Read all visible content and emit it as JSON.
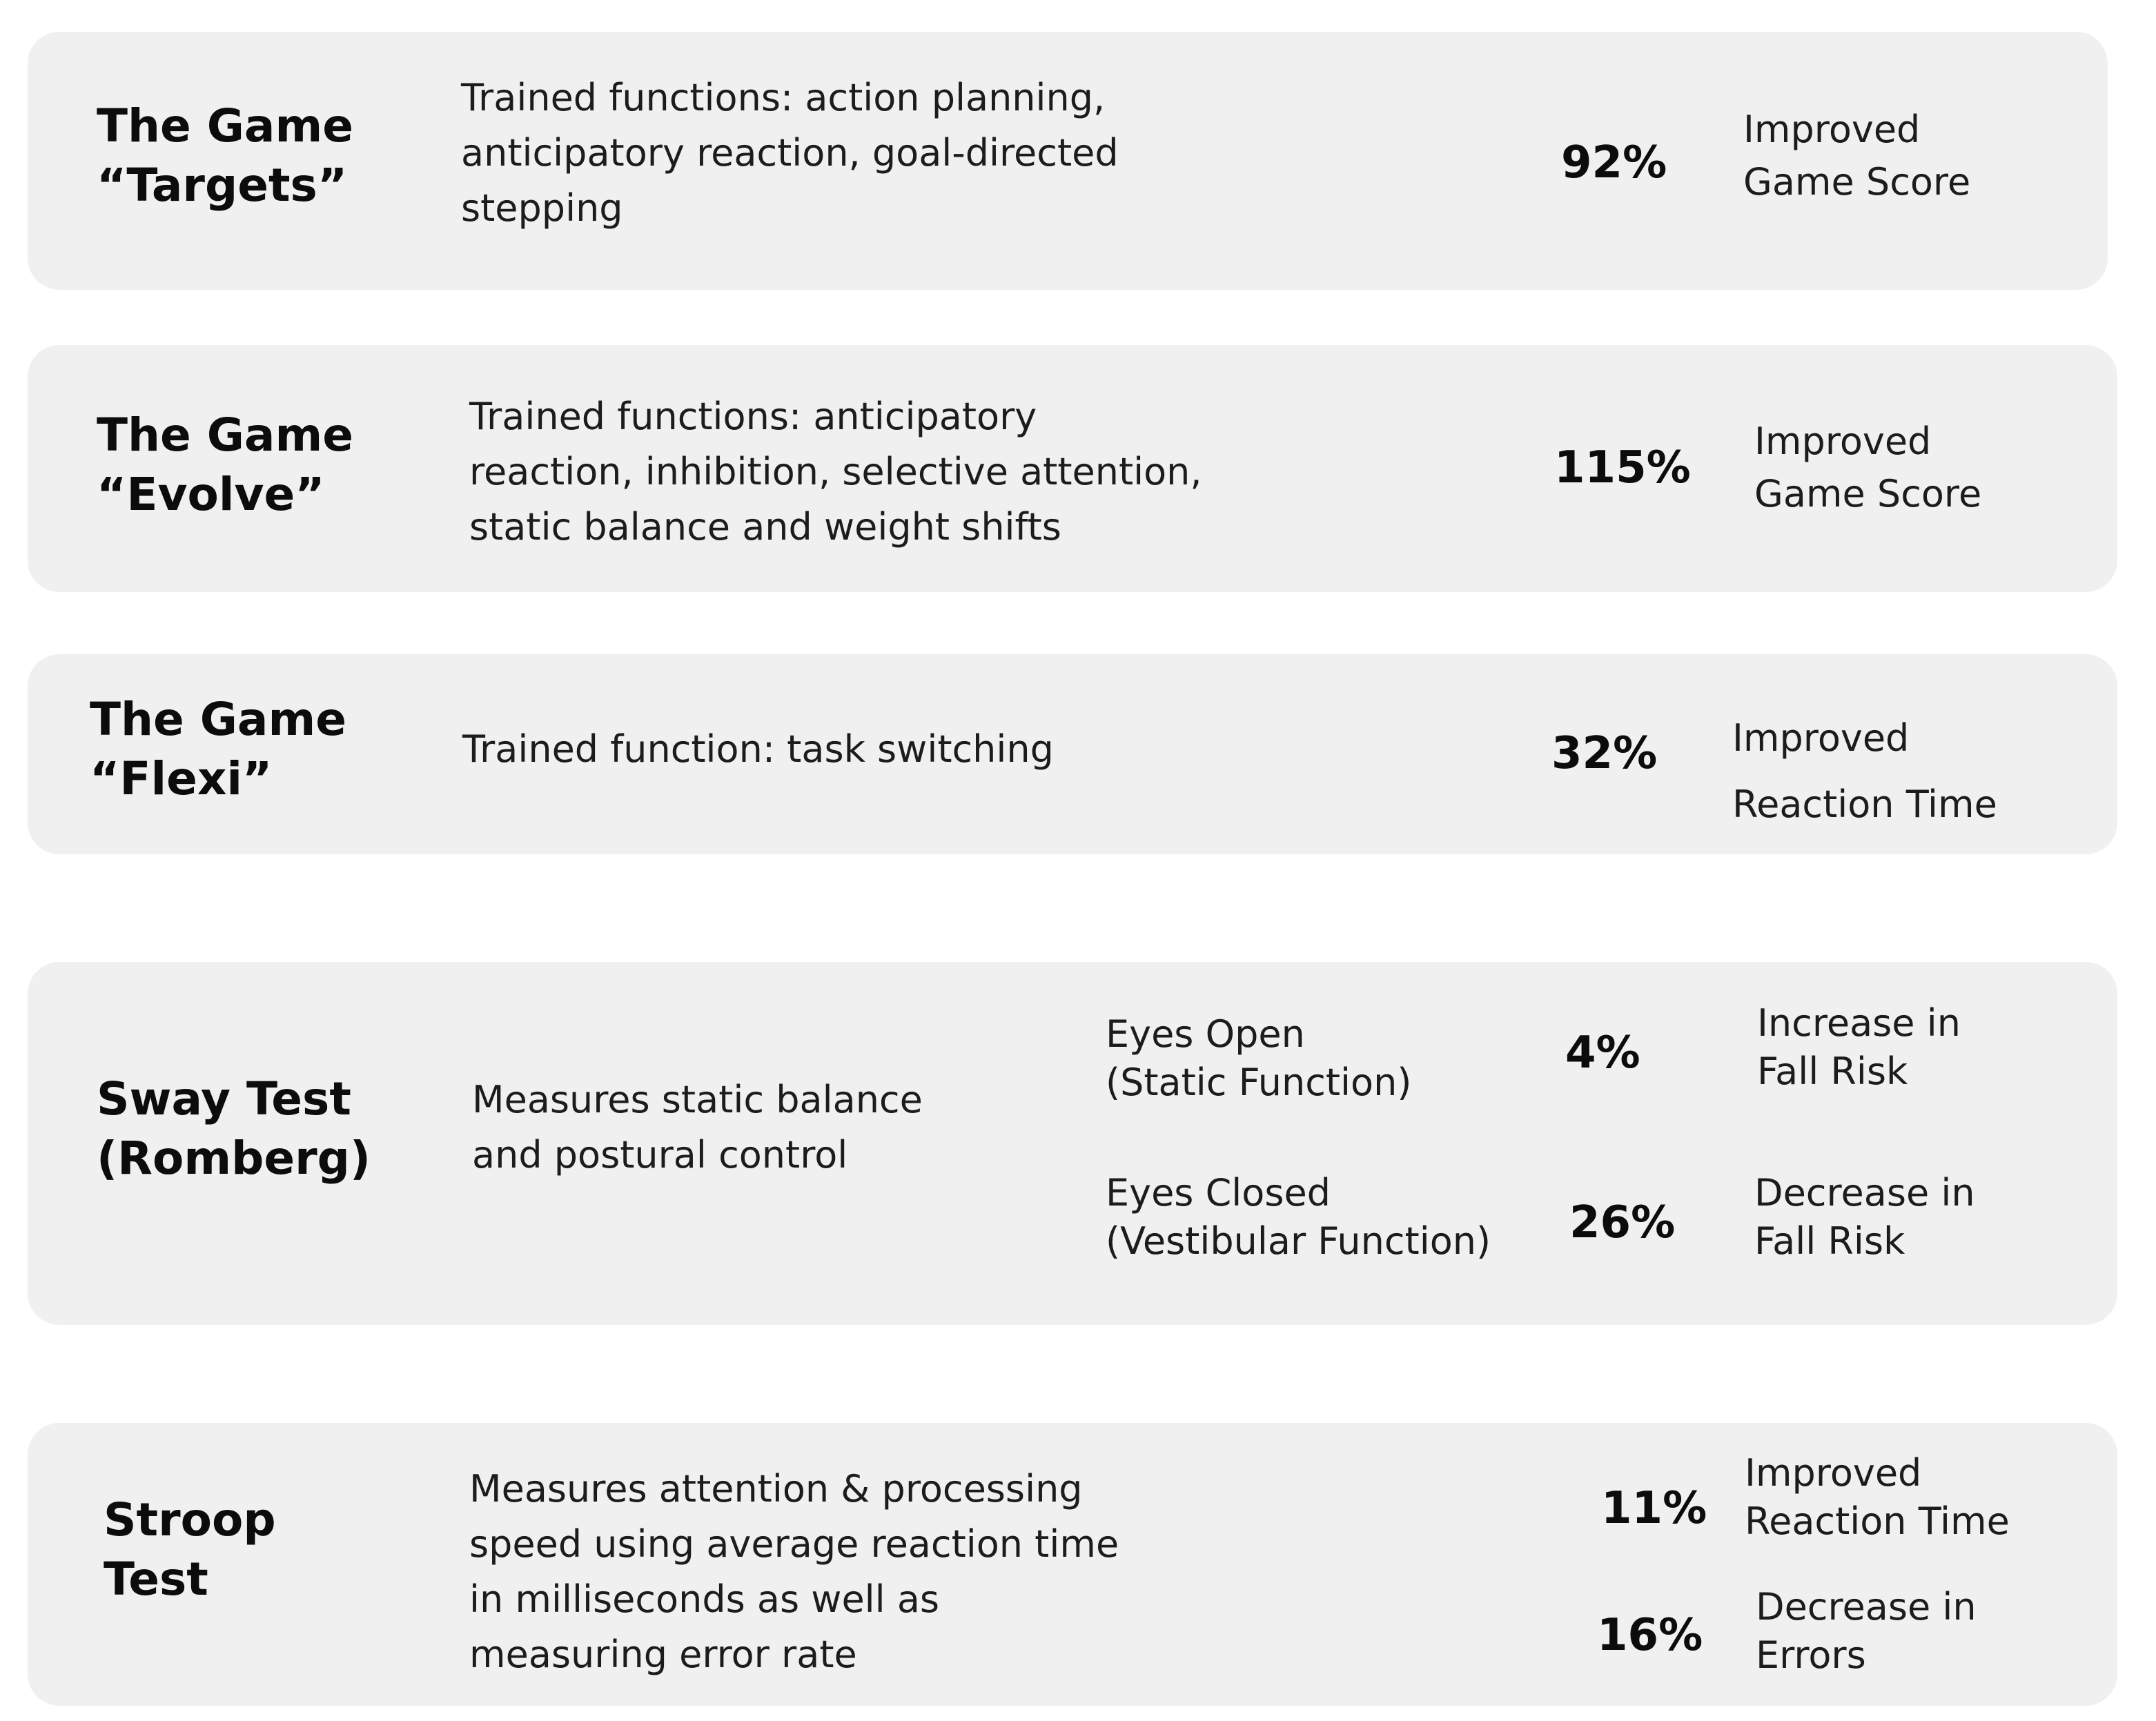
{
  "cards": [
    {
      "title": "The Game\n“Targets”",
      "description": "Trained functions: action planning,\nanticipatory reaction, goal-directed\nstepping",
      "percent": "92%",
      "result": "Improved\nGame Score"
    },
    {
      "title": "The Game\n“Evolve”",
      "description": "Trained functions: anticipatory\nreaction, inhibition, selective attention,\nstatic balance and weight shifts",
      "percent": "115%",
      "result": "Improved\nGame Score"
    },
    {
      "title": "The Game\n“Flexi”",
      "description": "Trained function: task switching",
      "percent": "32%",
      "result": "Improved\nReaction Time"
    },
    {
      "title": "Sway Test\n(Romberg)",
      "description": "Measures static balance\nand postural control",
      "measures": [
        {
          "condition": "Eyes Open\n(Static Function)",
          "percent": "4%",
          "result": "Increase in\nFall Risk"
        },
        {
          "condition": "Eyes Closed\n(Vestibular Function)",
          "percent": "26%",
          "result": "Decrease in\nFall Risk"
        }
      ]
    },
    {
      "title": "Stroop\nTest",
      "description": "Measures attention & processing\nspeed using average reaction time\nin milliseconds as well as\nmeasuring error rate",
      "measures": [
        {
          "percent": "11%",
          "result": "Improved\nReaction Time"
        },
        {
          "percent": "16%",
          "result": "Decrease in\nErrors"
        }
      ]
    }
  ]
}
